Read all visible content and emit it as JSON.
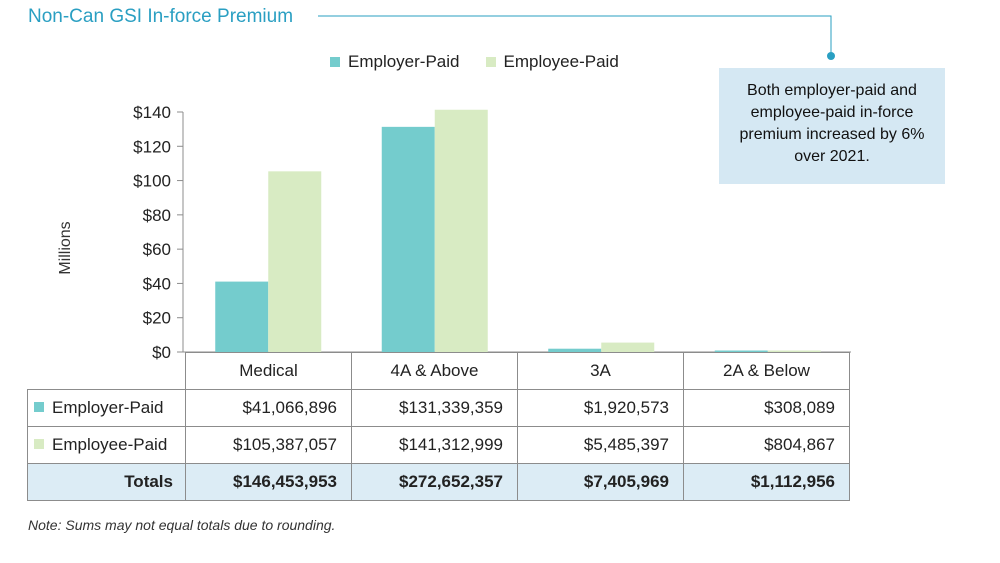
{
  "title": "Non-Can GSI In-force Premium",
  "callout": "Both employer-paid and employee-paid in-force premium increased by 6% over 2021.",
  "note": "Note: Sums may not equal totals due to rounding.",
  "colors": {
    "employer": "#74cccd",
    "employee": "#d8ebc3",
    "accent": "#2a9fc2",
    "callout_bg": "#d5e8f3"
  },
  "chart_data": {
    "type": "bar",
    "title": "Non-Can GSI In-force Premium",
    "ylabel": "Millions",
    "xlabel": "",
    "ylim": [
      0,
      140
    ],
    "yticks": [
      0,
      20,
      40,
      60,
      80,
      100,
      120,
      140
    ],
    "ytick_labels": [
      "$0",
      "$20",
      "$40",
      "$60",
      "$80",
      "$100",
      "$120",
      "$140"
    ],
    "categories": [
      "Medical",
      "4A & Above",
      "3A",
      "2A & Below"
    ],
    "series": [
      {
        "name": "Employer-Paid",
        "values": [
          41.066896,
          131.339359,
          1.920573,
          0.308089
        ]
      },
      {
        "name": "Employee-Paid",
        "values": [
          105.387057,
          141.312999,
          5.485397,
          0.804867
        ]
      }
    ],
    "legend": "top"
  },
  "table": {
    "rows": [
      {
        "label": "Employer-Paid",
        "values": [
          "$41,066,896",
          "$131,339,359",
          "$1,920,573",
          "$308,089"
        ]
      },
      {
        "label": "Employee-Paid",
        "values": [
          "$105,387,057",
          "$141,312,999",
          "$5,485,397",
          "$804,867"
        ]
      }
    ],
    "totals": {
      "label": "Totals",
      "values": [
        "$146,453,953",
        "$272,652,357",
        "$7,405,969",
        "$1,112,956"
      ]
    }
  }
}
